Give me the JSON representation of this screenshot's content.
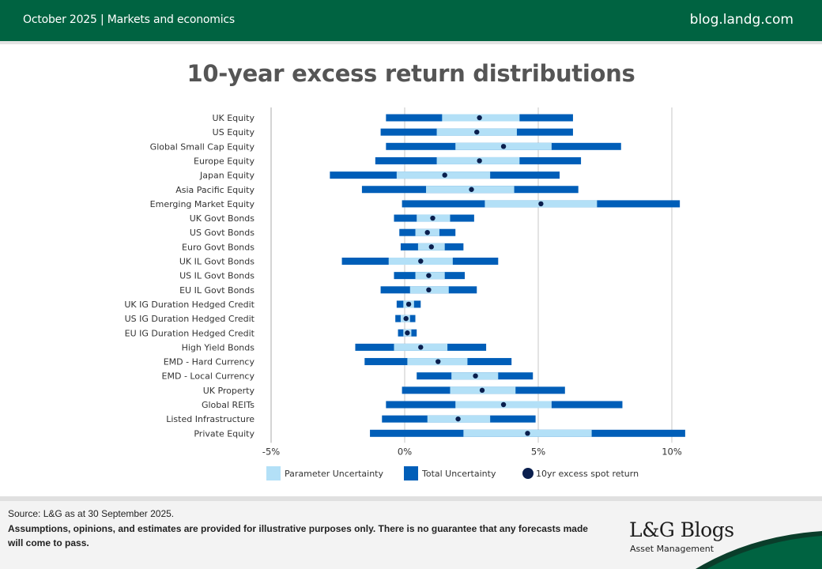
{
  "header": {
    "left_text": "October 2025 | Markets and economics",
    "right_text": "blog.landg.com"
  },
  "colors": {
    "brand_green": "#006341",
    "total_uncertainty": "#005EB8",
    "parameter_uncertainty": "#B3E0F7",
    "spot_return": "#0A1F4E",
    "gridline": "#d0d0d0"
  },
  "chart_data": {
    "type": "range-bar",
    "title": "10-year excess return distributions",
    "xlabel": "",
    "ylabel": "",
    "xlim": [
      -5,
      10.5
    ],
    "x_ticks": [
      -5,
      0,
      5,
      10
    ],
    "x_tick_labels": [
      "-5%",
      "0%",
      "5%",
      "10%"
    ],
    "grid": "vertical",
    "legend_position": "bottom",
    "legend": [
      {
        "key": "parameter",
        "label": "Parameter Uncertainty"
      },
      {
        "key": "total",
        "label": "Total Uncertainty"
      },
      {
        "key": "spot",
        "label": "10yr excess spot return"
      }
    ],
    "categories": [
      "UK Equity",
      "US Equity",
      "Global Small Cap Equity",
      "Europe Equity",
      "Japan Equity",
      "Asia Pacific Equity",
      "Emerging Market Equity",
      "UK Govt Bonds",
      "US Govt Bonds",
      "Euro Govt Bonds",
      "UK IL Govt Bonds",
      "US IL Govt Bonds",
      "EU IL Govt Bonds",
      "UK IG Duration Hedged Credit",
      "US IG Duration Hedged Credit",
      "EU IG Duration Hedged Credit",
      "High Yield Bonds",
      "EMD - Hard Currency",
      "EMD - Local Currency",
      "UK Property",
      "Global REITs",
      "Listed Infrastructure",
      "Private Equity"
    ],
    "series": [
      {
        "name": "Total Uncertainty",
        "low": [
          -0.7,
          -0.9,
          -0.7,
          -1.1,
          -2.8,
          -1.6,
          -0.1,
          -0.4,
          -0.2,
          -0.15,
          -2.35,
          -0.4,
          -0.9,
          -0.3,
          -0.35,
          -0.25,
          -1.85,
          -1.5,
          0.45,
          -0.1,
          -0.7,
          -0.85,
          -1.3
        ],
        "high": [
          6.3,
          6.3,
          8.1,
          6.6,
          5.8,
          6.5,
          10.3,
          2.6,
          1.9,
          2.2,
          3.5,
          2.25,
          2.7,
          0.6,
          0.4,
          0.45,
          3.05,
          4.0,
          4.8,
          6.0,
          8.15,
          4.9,
          10.5
        ]
      },
      {
        "name": "Parameter Uncertainty",
        "low": [
          1.4,
          1.2,
          1.9,
          1.2,
          -0.3,
          0.8,
          3.0,
          0.45,
          0.4,
          0.5,
          -0.6,
          0.4,
          0.2,
          -0.05,
          -0.15,
          -0.05,
          -0.4,
          0.1,
          1.75,
          1.7,
          1.9,
          0.85,
          2.2
        ],
        "high": [
          4.3,
          4.2,
          5.5,
          4.3,
          3.2,
          4.1,
          7.2,
          1.7,
          1.3,
          1.5,
          1.8,
          1.5,
          1.65,
          0.35,
          0.2,
          0.25,
          1.6,
          2.35,
          3.5,
          4.15,
          5.5,
          3.2,
          7.0
        ]
      },
      {
        "name": "10yr excess spot return",
        "values": [
          2.8,
          2.7,
          3.7,
          2.8,
          1.5,
          2.5,
          5.1,
          1.05,
          0.85,
          1.0,
          0.6,
          0.9,
          0.9,
          0.15,
          0.05,
          0.1,
          0.6,
          1.25,
          2.65,
          2.9,
          3.7,
          2.0,
          4.6
        ]
      }
    ]
  },
  "footer": {
    "source": "Source: L&G as at 30 September 2025.",
    "disclaimer": "Assumptions, opinions, and estimates are provided for illustrative purposes only. There is no guarantee that any forecasts made will come to pass.",
    "brand_title": "L&G Blogs",
    "brand_subtitle": "Asset Management"
  }
}
